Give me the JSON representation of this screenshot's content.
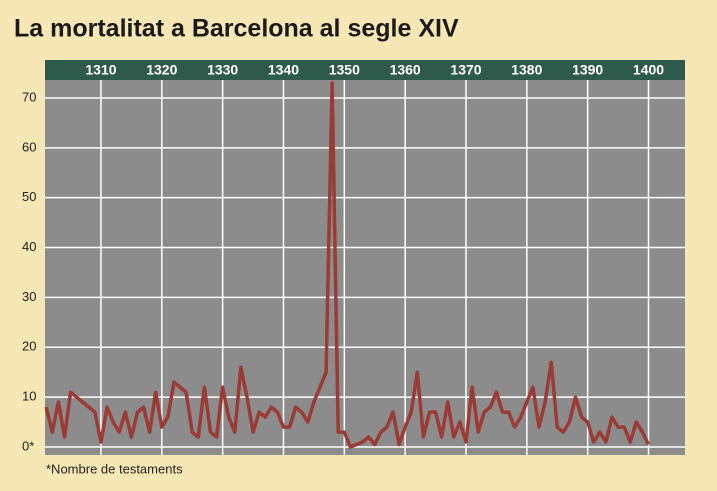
{
  "chart_data": {
    "type": "line",
    "title": "La mortalitat a Barcelona al segle XIV",
    "footnote": "*Nombre de testaments",
    "x": [
      1301,
      1302,
      1303,
      1304,
      1305,
      1306,
      1307,
      1308,
      1309,
      1310,
      1311,
      1312,
      1313,
      1314,
      1315,
      1316,
      1317,
      1318,
      1319,
      1320,
      1321,
      1322,
      1323,
      1324,
      1325,
      1326,
      1327,
      1328,
      1329,
      1330,
      1331,
      1332,
      1333,
      1334,
      1335,
      1336,
      1337,
      1338,
      1339,
      1340,
      1341,
      1342,
      1343,
      1344,
      1345,
      1346,
      1347,
      1348,
      1349,
      1350,
      1351,
      1352,
      1353,
      1354,
      1355,
      1356,
      1357,
      1358,
      1359,
      1360,
      1361,
      1362,
      1363,
      1364,
      1365,
      1366,
      1367,
      1368,
      1369,
      1370,
      1371,
      1372,
      1373,
      1374,
      1375,
      1376,
      1377,
      1378,
      1379,
      1380,
      1381,
      1382,
      1383,
      1384,
      1385,
      1386,
      1387,
      1388,
      1389,
      1390,
      1391,
      1392,
      1393,
      1394,
      1395,
      1396,
      1397,
      1398,
      1399,
      1400
    ],
    "series": [
      {
        "color": "#9b3b33",
        "values": [
          8,
          3,
          9,
          2,
          11,
          10,
          9,
          8,
          7,
          1,
          8,
          5,
          3,
          7,
          2,
          7,
          8,
          3,
          11,
          4,
          6,
          13,
          12,
          11,
          3,
          2,
          12,
          3,
          2,
          12,
          6,
          3,
          16,
          10,
          3,
          7,
          6,
          8,
          7,
          4,
          4,
          8,
          7,
          5,
          9,
          12,
          15,
          73,
          3,
          3,
          0,
          0.5,
          1,
          2,
          0.5,
          3,
          4,
          7,
          0.5,
          4,
          7,
          15,
          2,
          7,
          7,
          2,
          9,
          2,
          5,
          1,
          12,
          3,
          7,
          8,
          11,
          7,
          7,
          4,
          6,
          9,
          12,
          4,
          9,
          17,
          4,
          3,
          5,
          10,
          6,
          5,
          1,
          3,
          1,
          6,
          4,
          4,
          1,
          5,
          3,
          0.5
        ]
      }
    ],
    "xlim": [
      1300.8,
      1406
    ],
    "xticks": [
      1310,
      1320,
      1330,
      1340,
      1350,
      1360,
      1370,
      1380,
      1390,
      1400
    ],
    "ylim": [
      -1.6,
      73.6
    ],
    "yticks": [
      {
        "value": 0,
        "label": "0*"
      },
      10,
      20,
      30,
      40,
      50,
      60,
      70
    ],
    "grid": true
  }
}
